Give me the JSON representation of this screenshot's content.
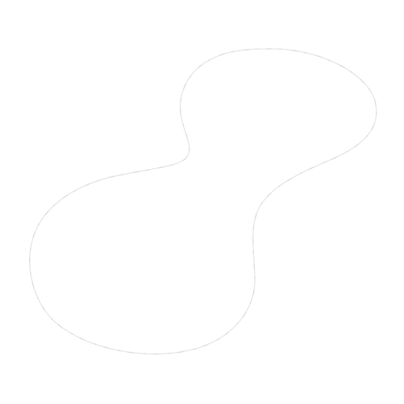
{
  "figure": {
    "background_color": "#ffffff",
    "stroke_color": "#dedede",
    "shape": "closed-curve-outline"
  }
}
